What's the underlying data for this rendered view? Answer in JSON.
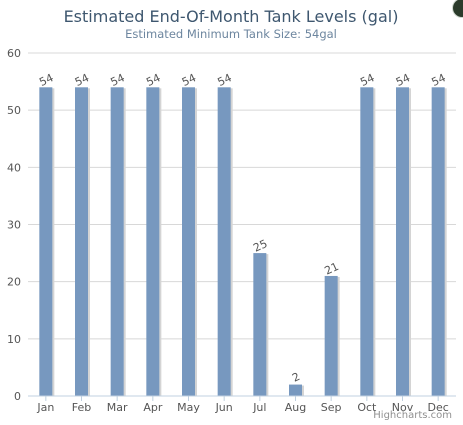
{
  "chart_data": {
    "type": "bar",
    "title": "Estimated End-Of-Month Tank Levels (gal)",
    "subtitle": "Estimated Minimum Tank Size: 54gal",
    "categories": [
      "Jan",
      "Feb",
      "Mar",
      "Apr",
      "May",
      "Jun",
      "Jul",
      "Aug",
      "Sep",
      "Oct",
      "Nov",
      "Dec"
    ],
    "values": [
      54,
      54,
      54,
      54,
      54,
      54,
      25,
      2,
      21,
      54,
      54,
      54
    ],
    "data_labels": [
      "54",
      "54",
      "54",
      "54",
      "54",
      "54",
      "25",
      "2",
      "21",
      "54",
      "54",
      "54"
    ],
    "ylim": [
      0,
      60
    ],
    "yticks": [
      "0",
      "10",
      "20",
      "30",
      "40",
      "50",
      "60"
    ],
    "xlabel": "",
    "ylabel": "",
    "grid": true,
    "legend": false,
    "bar_color": "#7798bf"
  },
  "credits": "Highcharts.com",
  "close_icon": "close-icon"
}
